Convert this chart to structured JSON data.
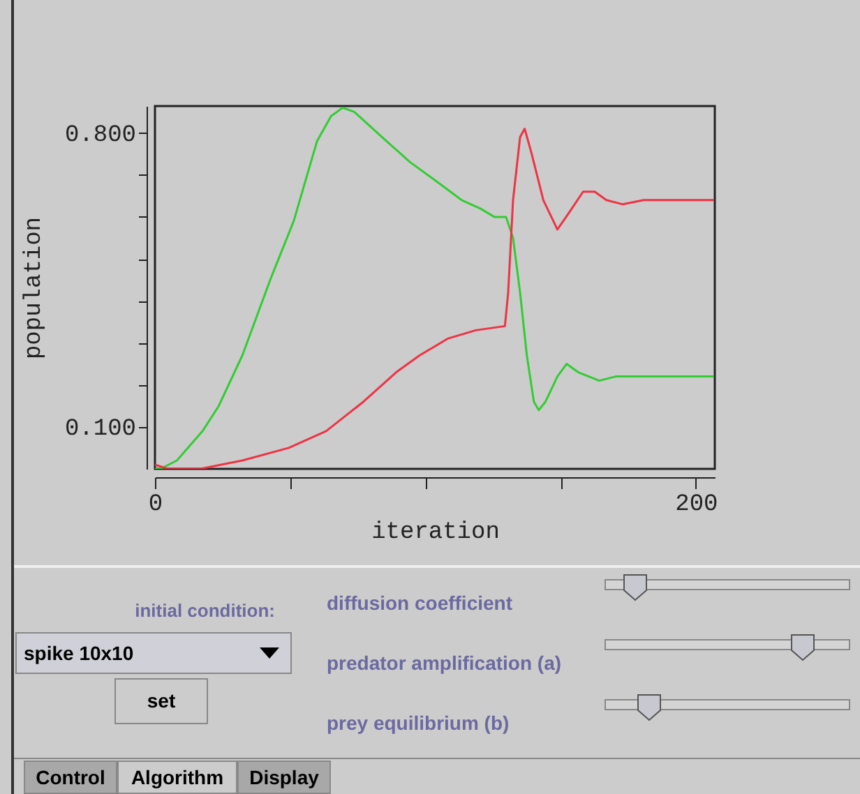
{
  "chart_data": [
    {
      "type": "line",
      "xlabel": "iteration",
      "ylabel": "population",
      "xlim": [
        0,
        207
      ],
      "ylim": [
        0,
        0.864
      ],
      "xticks": [
        0,
        {
          "value": 50,
          "label": null
        },
        {
          "value": 100,
          "label": null
        },
        {
          "value": 150,
          "label": null
        },
        200
      ],
      "yticks": [
        {
          "value": 0.1,
          "label": "0.100"
        },
        {
          "value": 0.2,
          "label": null
        },
        {
          "value": 0.3,
          "label": null
        },
        {
          "value": 0.4,
          "label": null
        },
        {
          "value": 0.5,
          "label": null
        },
        {
          "value": 0.6,
          "label": null
        },
        {
          "value": 0.7,
          "label": null
        },
        {
          "value": 0.8,
          "label": "0.800"
        }
      ],
      "series": [
        {
          "color": "#33cc33",
          "x": [
            0,
            2,
            8.1,
            17.6,
            23.6,
            32.3,
            42.6,
            51.3,
            59.9,
            65.1,
            69.4,
            73.7,
            84,
            94.4,
            103,
            113.4,
            120.3,
            125.5,
            129.8,
            132.4,
            135,
            137.5,
            140.1,
            141.9,
            144.4,
            148.8,
            152.2,
            156.5,
            164.3,
            170.3,
            175.5,
            184.1,
            196.2,
            206.6
          ],
          "values": [
            0.0,
            0.0,
            0.02,
            0.09,
            0.15,
            0.27,
            0.45,
            0.59,
            0.78,
            0.84,
            0.86,
            0.85,
            0.79,
            0.73,
            0.69,
            0.64,
            0.62,
            0.6,
            0.6,
            0.55,
            0.42,
            0.27,
            0.16,
            0.14,
            0.16,
            0.22,
            0.25,
            0.23,
            0.21,
            0.22,
            0.22,
            0.22,
            0.22,
            0.22
          ]
        },
        {
          "color": "#ee3344",
          "x": [
            0,
            4.7,
            16.7,
            32.3,
            49.5,
            63.3,
            77.1,
            89.2,
            97.8,
            108.2,
            118.6,
            129.4,
            130.6,
            132.4,
            135,
            136.7,
            139.3,
            143.6,
            148.8,
            153.1,
            158.3,
            162.6,
            166.9,
            173,
            180.7,
            194.5,
            206.6
          ],
          "values": [
            0.01,
            0.0,
            0.0,
            0.02,
            0.05,
            0.09,
            0.16,
            0.23,
            0.27,
            0.31,
            0.33,
            0.34,
            0.42,
            0.64,
            0.79,
            0.81,
            0.75,
            0.64,
            0.57,
            0.61,
            0.66,
            0.66,
            0.64,
            0.63,
            0.64,
            0.64,
            0.64
          ]
        }
      ],
      "grid": false
    },
    {
      "type": "other",
      "annotations": [
        "initial condition:",
        "spike 10x10",
        "set",
        "diffusion coefficient",
        "predator amplification (a)",
        "prey equilibrium (b)",
        "Control",
        "Algorithm",
        "Display"
      ]
    }
  ]
}
